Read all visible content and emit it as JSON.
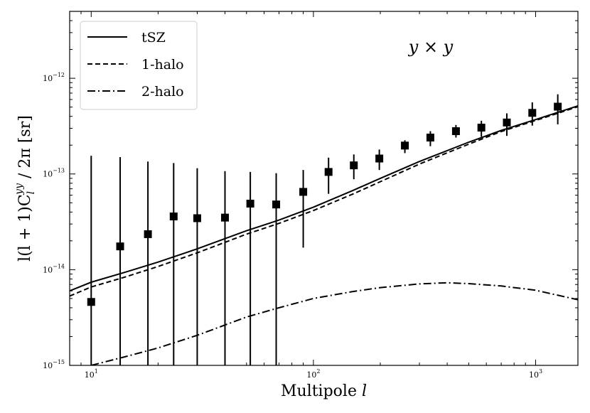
{
  "chart_data": {
    "type": "line",
    "title": "",
    "annotation": "y × y",
    "xlabel": "Multipole l",
    "ylabel": "l(l + 1)C_l^{yy} / 2π [sr]",
    "xscale": "log",
    "yscale": "log",
    "xlim": [
      8,
      1550
    ],
    "ylim": [
      1e-15,
      5e-12
    ],
    "x_major_ticks": [
      10,
      100,
      1000
    ],
    "x_tick_labels": [
      {
        "base": "10",
        "exp": "1"
      },
      {
        "base": "10",
        "exp": "2"
      },
      {
        "base": "10",
        "exp": "3"
      }
    ],
    "y_major_ticks": [
      1e-15,
      1e-14,
      1e-13,
      1e-12
    ],
    "y_tick_labels": [
      {
        "base": "10",
        "exp": "−15"
      },
      {
        "base": "10",
        "exp": "−14"
      },
      {
        "base": "10",
        "exp": "−13"
      },
      {
        "base": "10",
        "exp": "−12"
      }
    ],
    "legend": {
      "position": "top-left",
      "entries": [
        {
          "label": "tSZ",
          "style": "solid"
        },
        {
          "label": "1-halo",
          "style": "dashed"
        },
        {
          "label": "2-halo",
          "style": "dashdot"
        }
      ]
    },
    "series": [
      {
        "name": "tSZ",
        "style": "solid",
        "x": [
          8,
          10,
          14,
          20,
          30,
          50,
          70,
          100,
          150,
          200,
          300,
          500,
          700,
          1000,
          1550
        ],
        "y": [
          6e-15,
          7.4e-15,
          9.3e-15,
          1.2e-14,
          1.65e-14,
          2.55e-14,
          3.3e-14,
          4.5e-14,
          6.7e-14,
          9e-14,
          1.35e-13,
          2.15e-13,
          2.85e-13,
          3.7e-13,
          5.15e-13
        ]
      },
      {
        "name": "1-halo",
        "style": "dashed",
        "x": [
          8,
          10,
          14,
          20,
          30,
          50,
          70,
          100,
          150,
          200,
          300,
          500,
          700,
          1000,
          1550
        ],
        "y": [
          5.3e-15,
          6.6e-15,
          8.3e-15,
          1.08e-14,
          1.5e-14,
          2.35e-14,
          3.05e-14,
          4.15e-14,
          6.15e-14,
          8.3e-14,
          1.27e-13,
          2.05e-13,
          2.78e-13,
          3.62e-13,
          5.05e-13
        ]
      },
      {
        "name": "2-halo",
        "style": "dashdot",
        "x": [
          10,
          14,
          20,
          30,
          50,
          70,
          100,
          150,
          200,
          300,
          400,
          500,
          700,
          1000,
          1550
        ],
        "y": [
          1e-15,
          1.22e-15,
          1.52e-15,
          2.06e-15,
          3.2e-15,
          4e-15,
          5e-15,
          5.9e-15,
          6.5e-15,
          7.1e-15,
          7.3e-15,
          7.15e-15,
          6.75e-15,
          6.1e-15,
          4.85e-15
        ]
      },
      {
        "name": "data",
        "style": "markers",
        "points": [
          {
            "x": 10,
            "y": 4.6e-15,
            "ylo": 1e-15,
            "yhi": 1.55e-13
          },
          {
            "x": 13.5,
            "y": 1.75e-14,
            "ylo": 1e-15,
            "yhi": 1.5e-13
          },
          {
            "x": 18,
            "y": 2.35e-14,
            "ylo": 1e-15,
            "yhi": 1.35e-13
          },
          {
            "x": 23.5,
            "y": 3.6e-14,
            "ylo": 1e-15,
            "yhi": 1.3e-13
          },
          {
            "x": 30,
            "y": 3.45e-14,
            "ylo": 1e-15,
            "yhi": 1.15e-13
          },
          {
            "x": 40,
            "y": 3.5e-14,
            "ylo": 1e-15,
            "yhi": 1.07e-13
          },
          {
            "x": 52,
            "y": 4.9e-14,
            "ylo": 1e-15,
            "yhi": 1.05e-13
          },
          {
            "x": 68,
            "y": 4.8e-14,
            "ylo": 1e-15,
            "yhi": 1.02e-13
          },
          {
            "x": 90,
            "y": 6.5e-14,
            "ylo": 1.7e-14,
            "yhi": 1.1e-13
          },
          {
            "x": 117,
            "y": 1.05e-13,
            "ylo": 6.2e-14,
            "yhi": 1.48e-13
          },
          {
            "x": 152,
            "y": 1.23e-13,
            "ylo": 8.8e-14,
            "yhi": 1.6e-13
          },
          {
            "x": 198,
            "y": 1.45e-13,
            "ylo": 1.1e-13,
            "yhi": 1.8e-13
          },
          {
            "x": 258,
            "y": 1.98e-13,
            "ylo": 1.65e-13,
            "yhi": 2.25e-13
          },
          {
            "x": 336,
            "y": 2.4e-13,
            "ylo": 1.95e-13,
            "yhi": 2.8e-13
          },
          {
            "x": 438,
            "y": 2.8e-13,
            "ylo": 2.4e-13,
            "yhi": 3.25e-13
          },
          {
            "x": 570,
            "y": 3.05e-13,
            "ylo": 2.45e-13,
            "yhi": 3.6e-13
          },
          {
            "x": 742,
            "y": 3.45e-13,
            "ylo": 2.5e-13,
            "yhi": 4.3e-13
          },
          {
            "x": 966,
            "y": 4.35e-13,
            "ylo": 3.2e-13,
            "yhi": 5.6e-13
          },
          {
            "x": 1258,
            "y": 5.05e-13,
            "ylo": 3.3e-13,
            "yhi": 6.8e-13
          }
        ]
      }
    ]
  }
}
